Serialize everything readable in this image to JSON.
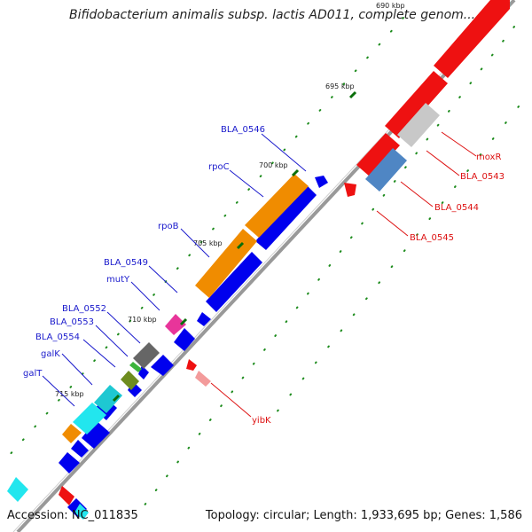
{
  "title": "Bifidobacterium animalis subsp. lactis AD011, complete genom...",
  "footer": {
    "accession": "Accession: NC_011835",
    "info": "Topology: circular; Length: 1,933,695 bp; Genes: 1,586"
  },
  "ticks": [
    "690 kbp",
    "695 kbp",
    "700 kbp",
    "705 kbp",
    "710 kbp",
    "715 kbp"
  ],
  "gene_labels": {
    "left": [
      "BLA_0546",
      "rpoC",
      "rpoB",
      "BLA_0549",
      "mutY",
      "BLA_0552",
      "BLA_0553",
      "BLA_0554",
      "galK",
      "galT"
    ],
    "right": [
      "moxR",
      "BLA_0543",
      "BLA_0544",
      "BLA_0545",
      "yibK"
    ]
  },
  "colors": {
    "forward_strand": "#0000ee",
    "reverse_strand": "#ee0000",
    "backbone": "#888888",
    "rpo_genes": "#f08c00",
    "label_blue": "#1a1acc",
    "label_red": "#dd1111"
  }
}
